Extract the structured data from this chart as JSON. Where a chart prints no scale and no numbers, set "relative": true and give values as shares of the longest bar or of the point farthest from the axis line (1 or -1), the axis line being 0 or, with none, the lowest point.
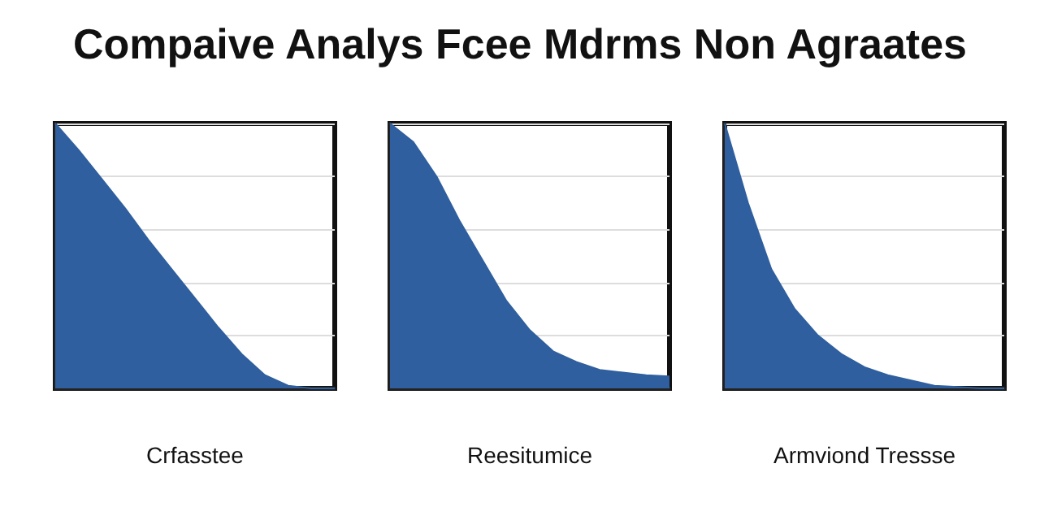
{
  "chart_data": [
    {
      "type": "area",
      "title": "Compaive Analys Fcee Mdrms Non Agraates",
      "xlabel": "Crfasstee",
      "relative": true,
      "grid": "y",
      "color": "#2f5f9e",
      "categories": [
        null,
        null,
        null,
        null,
        null,
        null,
        null,
        null,
        null,
        null,
        null,
        null,
        null
      ],
      "values": [
        1,
        0.9,
        0.79,
        0.68,
        0.56,
        0.45,
        0.34,
        0.23,
        0.13,
        0.05,
        0.01,
        0,
        0
      ]
    },
    {
      "type": "area",
      "xlabel": "Reesitumice",
      "relative": true,
      "grid": "y",
      "color": "#2f5f9e",
      "categories": [
        null,
        null,
        null,
        null,
        null,
        null,
        null,
        null,
        null,
        null,
        null,
        null,
        null
      ],
      "values": [
        1,
        0.93,
        0.8,
        0.63,
        0.48,
        0.33,
        0.22,
        0.14,
        0.1,
        0.07,
        0.06,
        0.05,
        0.045
      ]
    },
    {
      "type": "area",
      "xlabel": "Armviond Tressse",
      "relative": true,
      "grid": "y",
      "color": "#2f5f9e",
      "categories": [
        null,
        null,
        null,
        null,
        null,
        null,
        null,
        null,
        null,
        null,
        null,
        null,
        null
      ],
      "values": [
        1,
        0.7,
        0.45,
        0.3,
        0.2,
        0.13,
        0.08,
        0.05,
        0.03,
        0.01,
        0.005,
        0,
        0
      ]
    }
  ]
}
